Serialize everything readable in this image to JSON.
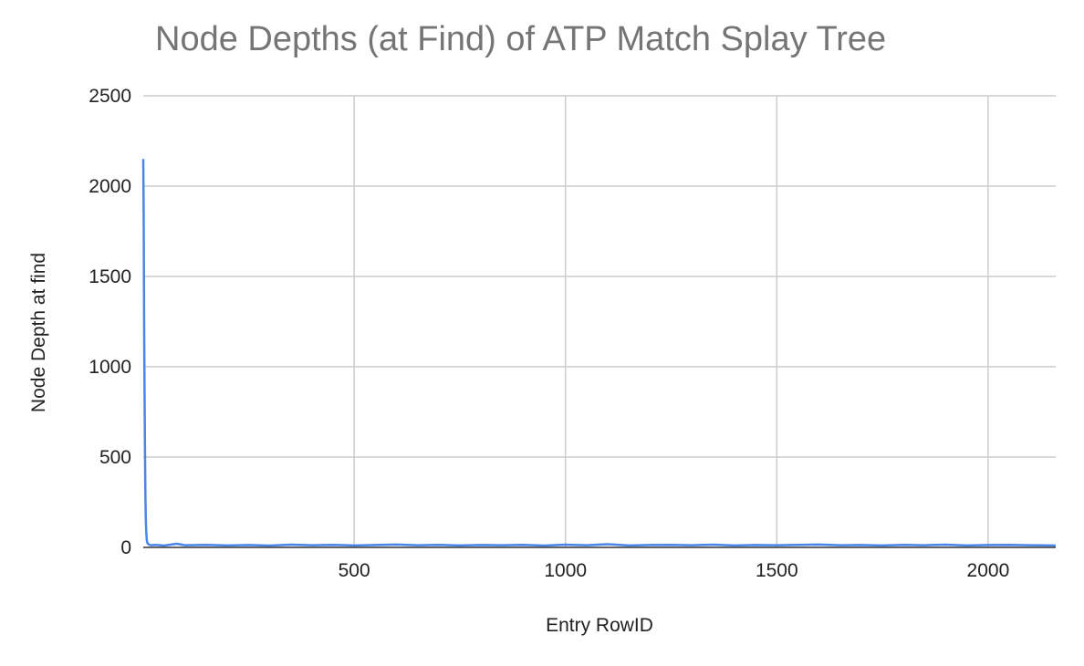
{
  "chart_data": {
    "type": "line",
    "title": "Node Depths (at Find) of ATP Match Splay Tree",
    "xlabel": "Entry RowID",
    "ylabel": "Node Depth at find",
    "xlim": [
      1,
      2160
    ],
    "ylim": [
      0,
      2500
    ],
    "x_ticks": [
      500,
      1000,
      1500,
      2000
    ],
    "y_ticks": [
      0,
      500,
      1000,
      1500,
      2000,
      2500
    ],
    "grid": true,
    "legend": "none",
    "series": [
      {
        "color": "#4a86e8",
        "x": [
          1,
          2,
          3,
          4,
          5,
          6,
          7,
          8,
          9,
          10,
          12,
          15,
          20,
          30,
          50,
          80,
          100,
          150,
          200,
          250,
          300,
          350,
          400,
          450,
          500,
          550,
          600,
          650,
          700,
          750,
          800,
          850,
          900,
          950,
          1000,
          1050,
          1100,
          1150,
          1200,
          1250,
          1300,
          1350,
          1400,
          1450,
          1500,
          1550,
          1600,
          1650,
          1700,
          1750,
          1800,
          1850,
          1900,
          1950,
          2000,
          2050,
          2100,
          2150,
          2160
        ],
        "y": [
          2150,
          1850,
          1250,
          880,
          560,
          300,
          160,
          90,
          50,
          30,
          20,
          15,
          12,
          14,
          10,
          20,
          12,
          14,
          11,
          13,
          10,
          15,
          12,
          14,
          11,
          13,
          16,
          12,
          14,
          11,
          13,
          12,
          14,
          10,
          15,
          12,
          18,
          11,
          13,
          14,
          12,
          15,
          11,
          13,
          12,
          14,
          16,
          12,
          13,
          11,
          14,
          12,
          15,
          11,
          13,
          14,
          12,
          11,
          10
        ]
      }
    ]
  }
}
